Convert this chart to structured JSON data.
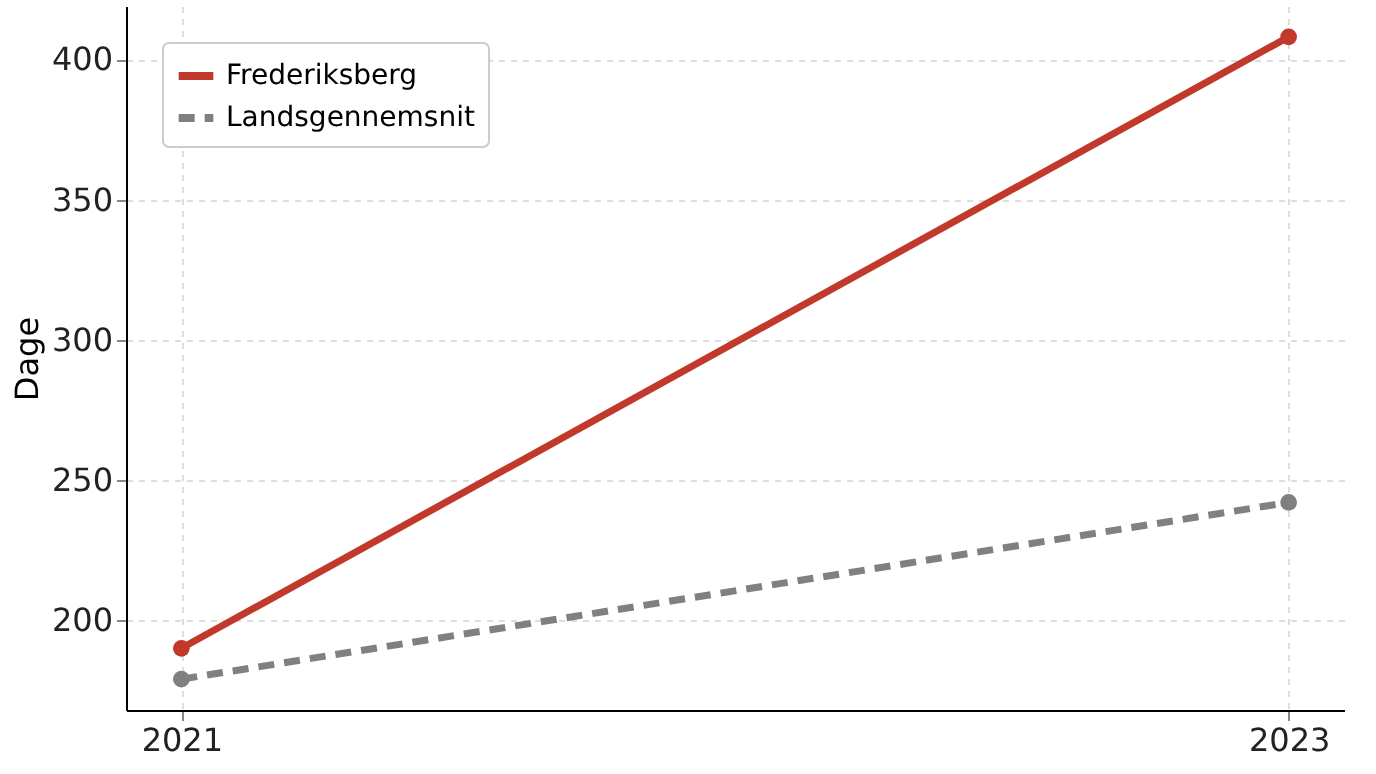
{
  "chart_data": {
    "type": "line",
    "ylabel": "Dage",
    "x": [
      2021,
      2023
    ],
    "series": [
      {
        "name": "Frederiksberg",
        "color": "#c0392b",
        "values": [
          190,
          408
        ],
        "line_style": "solid"
      },
      {
        "name": "Landsgennemsnit",
        "color": "#808080",
        "values": [
          179,
          242
        ],
        "line_style": "dashed"
      }
    ],
    "xlim": [
      2020.9,
      2023.1
    ],
    "xticks": [
      2021,
      2023
    ],
    "ylim": [
      168,
      419
    ],
    "yticks": [
      200,
      250,
      300,
      350,
      400
    ],
    "grid": true,
    "legend": "top left",
    "marker": "circle"
  }
}
